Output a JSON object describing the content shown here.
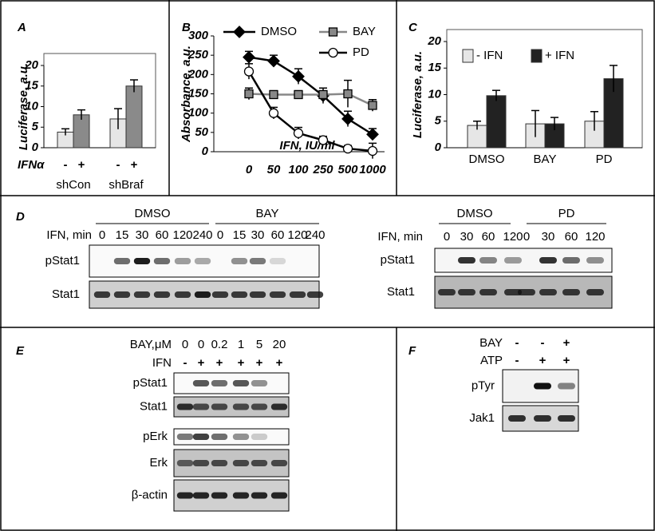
{
  "panel_labels": [
    "A",
    "B",
    "C",
    "D",
    "E",
    "F"
  ],
  "chart_data": [
    {
      "type": "bar",
      "y_label": "Luciferase, a.u.",
      "row_label": "IFNα",
      "categories": [
        "shCon",
        "shBraf"
      ],
      "series": [
        {
          "name": "-",
          "color": "#e6e6e6",
          "values": [
            3.8,
            7
          ],
          "errors": [
            0.8,
            2.5
          ]
        },
        {
          "name": "+",
          "color": "#8a8a8a",
          "values": [
            8,
            15
          ],
          "errors": [
            1.2,
            1.5
          ]
        }
      ],
      "ylim": [
        0,
        20
      ],
      "yticks": [
        0,
        5,
        10,
        15,
        20
      ]
    },
    {
      "type": "line",
      "y_label": "Absorbance, a.u.",
      "x_label": "IFN, IU/ml",
      "categories": [
        "0",
        "50",
        "100",
        "250",
        "500",
        "1000"
      ],
      "series": [
        {
          "name": "DMSO",
          "color": "#000000",
          "marker": "diamond",
          "values": [
            245,
            235,
            195,
            145,
            85,
            45
          ],
          "errors": [
            15,
            15,
            20,
            20,
            20,
            15
          ]
        },
        {
          "name": "BAY",
          "color": "#888888",
          "marker": "square",
          "values": [
            150,
            148,
            148,
            148,
            150,
            120
          ],
          "errors": [
            15,
            10,
            10,
            10,
            35,
            15
          ]
        },
        {
          "name": "PD",
          "color": "#000000",
          "marker": "circle",
          "values": [
            208,
            100,
            48,
            30,
            8,
            2
          ],
          "errors": [
            20,
            15,
            15,
            10,
            8,
            20
          ]
        }
      ],
      "ylim": [
        0,
        300
      ],
      "yticks": [
        0,
        50,
        100,
        150,
        200,
        250,
        300
      ]
    },
    {
      "type": "bar",
      "y_label": "Luciferase, a.u.",
      "legend": "top-left",
      "categories": [
        "DMSO",
        "BAY",
        "PD"
      ],
      "series": [
        {
          "name": "- IFN",
          "color": "#e6e6e6",
          "values": [
            4.2,
            4.5,
            5
          ],
          "errors": [
            0.8,
            2.5,
            1.8
          ]
        },
        {
          "name": "+ IFN",
          "color": "#222222",
          "values": [
            9.8,
            4.5,
            13
          ],
          "errors": [
            1,
            1.2,
            2.5
          ]
        }
      ],
      "ylim": [
        0,
        20
      ],
      "yticks": [
        0,
        5,
        10,
        15,
        20
      ]
    }
  ],
  "blots": [
    {
      "groups": [
        "DMSO",
        "BAY"
      ],
      "condition_labels": [
        "IFN, min"
      ],
      "conditions": [
        [
          "0",
          "15",
          "30",
          "60",
          "120",
          "240",
          "0",
          "15",
          "30",
          "60",
          "120",
          "240"
        ]
      ],
      "rows": [
        "pStat1",
        "Stat1"
      ]
    },
    {
      "groups": [
        "DMSO",
        "PD"
      ],
      "condition_labels": [
        "IFN, min"
      ],
      "conditions": [
        [
          "0",
          "30",
          "60",
          "120",
          "0",
          "30",
          "60",
          "120"
        ]
      ],
      "rows": [
        "pStat1",
        "Stat1"
      ]
    },
    {
      "condition_labels": [
        "BAY,μM",
        "IFN"
      ],
      "conditions": [
        [
          "0",
          "0",
          "0.2",
          "1",
          "5",
          "20"
        ],
        [
          "-",
          "+",
          "+",
          "+",
          "+",
          "+"
        ]
      ],
      "rows": [
        "pStat1",
        "Stat1",
        "pErk",
        "Erk",
        "β-actin"
      ]
    },
    {
      "condition_labels": [
        "BAY",
        "ATP"
      ],
      "conditions": [
        [
          "-",
          "-",
          "+"
        ],
        [
          "-",
          "+",
          "+"
        ]
      ],
      "rows": [
        "pTyr",
        "Jak1"
      ]
    }
  ]
}
